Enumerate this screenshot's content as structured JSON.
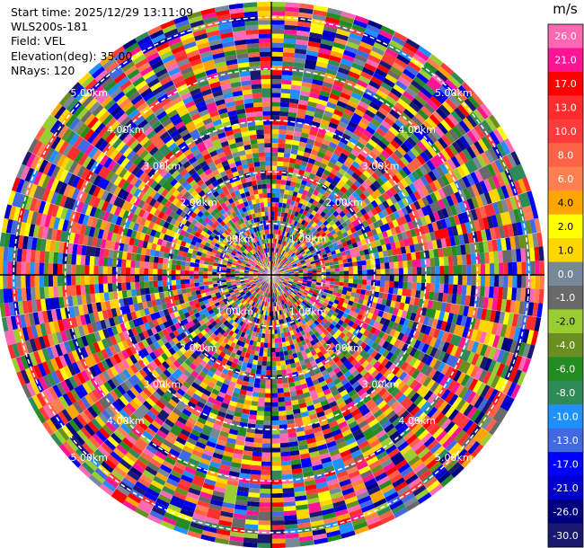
{
  "info": {
    "start_time": "Start time: 2025/12/29 13:11:09",
    "site": "WLS200s-181",
    "field": "Field: VEL",
    "elevation": "Elevation(deg): 35.00",
    "nrays": "NRays: 120"
  },
  "chart_data": {
    "type": "heatmap",
    "projection": "polar-ppi",
    "field": "VEL",
    "units": "m/s",
    "n_rays": 120,
    "range_rings_km": [
      1,
      2,
      3,
      4,
      5
    ],
    "range_ring_labels": [
      "1.00km",
      "2.00km",
      "3.00km",
      "4.00km",
      "5.00km"
    ],
    "max_range_km": 5.3,
    "ring_label_bearings_deg": [
      45,
      135,
      225,
      315
    ],
    "colorbar": {
      "title": "m/s",
      "levels": [
        26.0,
        21.0,
        17.0,
        13.0,
        10.0,
        8.0,
        6.0,
        4.0,
        2.0,
        1.0,
        0.0,
        -1.0,
        -2.0,
        -4.0,
        -6.0,
        -8.0,
        -10.0,
        -13.0,
        -17.0,
        -21.0,
        -26.0,
        -30.0
      ],
      "tick_labels": [
        "26.0",
        "21.0",
        "17.0",
        "13.0",
        "10.0",
        "8.0",
        "6.0",
        "4.0",
        "2.0",
        "1.0",
        "0.0",
        "-1.0",
        "-2.0",
        "-4.0",
        "-6.0",
        "-8.0",
        "-10.0",
        "-13.0",
        "-17.0",
        "-21.0",
        "-26.0",
        "-30.0"
      ],
      "colors": [
        "#ff69b4",
        "#ff1493",
        "#ff0000",
        "#ff2d2d",
        "#ff3b3b",
        "#ff6347",
        "#ff7f50",
        "#ffa500",
        "#ffff00",
        "#ffd700",
        "#778899",
        "#696969",
        "#9acd32",
        "#6b8e23",
        "#228b22",
        "#2e8b57",
        "#1e90ff",
        "#4169e1",
        "#0000ff",
        "#0000cd",
        "#000080",
        "#191970"
      ]
    }
  }
}
